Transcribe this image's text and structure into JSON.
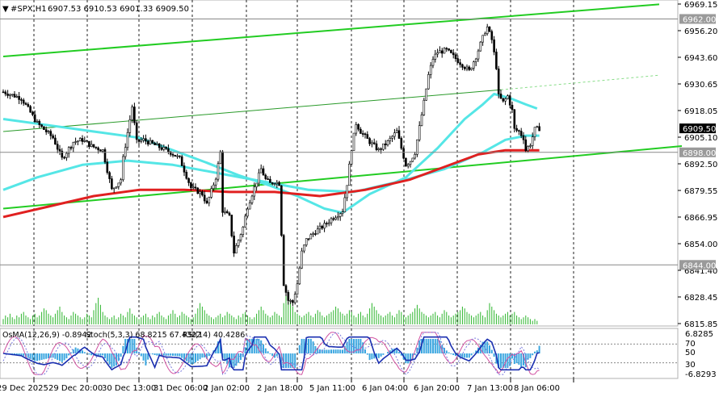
{
  "header": {
    "symbol": "#SPX,H1",
    "ohlc": "6907.53 6910.53 6901.33 6909.50"
  },
  "indicator": {
    "label_osma": "OsMA(12,26,9) -0.8942",
    "label_stoch": "Stoch(5,3,3) 68.8215 67.4322",
    "label_rsi": "RSI(14) 40.4286",
    "axis_labels": [
      "6.8285",
      "70",
      "50",
      "30",
      "-6.8293"
    ],
    "level_70_value": 70,
    "level_30_value": 30
  },
  "chart_data": {
    "type": "candlestick",
    "y_ticks": [
      "6969.15",
      "6956.20",
      "6943.60",
      "6930.65",
      "6918.05",
      "6905.10",
      "6892.50",
      "6879.55",
      "6866.95",
      "6854.00",
      "6841.40",
      "6828.45",
      "6815.85"
    ],
    "ylim": [
      6815.85,
      6969.15
    ],
    "x_ticks": [
      "29 Dec 2025",
      "29 Dec 20:00",
      "30 Dec 13:00",
      "31 Dec 06:00",
      "2 Jan 02:00",
      "2 Jan 18:00",
      "5 Jan 11:00",
      "6 Jan 04:00",
      "6 Jan 20:00",
      "7 Jan 13:00",
      "8 Jan 06:00"
    ],
    "price_labels": [
      {
        "text": "6962.00",
        "value": 6962.0,
        "style": "grey"
      },
      {
        "text": "6909.50",
        "value": 6909.5,
        "style": "current"
      },
      {
        "text": "6898.00",
        "value": 6898.0,
        "style": "grey"
      },
      {
        "text": "6844.00",
        "value": 6844.0,
        "style": "grey"
      }
    ],
    "close_path": [
      [
        0,
        6927
      ],
      [
        8,
        6924
      ],
      [
        15,
        6912
      ],
      [
        22,
        6905
      ],
      [
        26,
        6895
      ],
      [
        31,
        6903
      ],
      [
        35,
        6904
      ],
      [
        39,
        6901
      ],
      [
        44,
        6899
      ],
      [
        48,
        6880
      ],
      [
        52,
        6885
      ],
      [
        53,
        6895
      ],
      [
        57,
        6920
      ],
      [
        59,
        6903
      ],
      [
        62,
        6904
      ],
      [
        66,
        6902
      ],
      [
        70,
        6900
      ],
      [
        74,
        6898
      ],
      [
        78,
        6895
      ],
      [
        83,
        6881
      ],
      [
        88,
        6878
      ],
      [
        90,
        6873
      ],
      [
        94,
        6886
      ],
      [
        96,
        6898
      ],
      [
        97,
        6870
      ],
      [
        100,
        6867
      ],
      [
        102,
        6850
      ],
      [
        104,
        6856
      ],
      [
        106,
        6862
      ],
      [
        108,
        6872
      ],
      [
        110,
        6878
      ],
      [
        114,
        6890
      ],
      [
        116,
        6885
      ],
      [
        118,
        6883
      ],
      [
        120,
        6884
      ],
      [
        122,
        6883
      ],
      [
        124,
        6835
      ],
      [
        126,
        6827
      ],
      [
        128,
        6826
      ],
      [
        130,
        6835
      ],
      [
        132,
        6850
      ],
      [
        134,
        6856
      ],
      [
        138,
        6860
      ],
      [
        142,
        6863
      ],
      [
        145,
        6866
      ],
      [
        150,
        6870
      ],
      [
        152,
        6883
      ],
      [
        154,
        6900
      ],
      [
        156,
        6912
      ],
      [
        158,
        6908
      ],
      [
        162,
        6903
      ],
      [
        166,
        6899
      ],
      [
        170,
        6903
      ],
      [
        174,
        6908
      ],
      [
        176,
        6900
      ],
      [
        178,
        6892
      ],
      [
        180,
        6894
      ],
      [
        182,
        6898
      ],
      [
        184,
        6910
      ],
      [
        186,
        6922
      ],
      [
        188,
        6935
      ],
      [
        190,
        6943
      ],
      [
        192,
        6946
      ],
      [
        196,
        6947
      ],
      [
        200,
        6943
      ],
      [
        204,
        6939
      ],
      [
        206,
        6937
      ],
      [
        209,
        6944
      ],
      [
        211,
        6950
      ],
      [
        213,
        6956
      ],
      [
        214,
        6958
      ],
      [
        216,
        6952
      ],
      [
        218,
        6939
      ],
      [
        219,
        6925
      ],
      [
        221,
        6922
      ],
      [
        223,
        6925
      ],
      [
        225,
        6918
      ],
      [
        226,
        6909
      ],
      [
        228,
        6908
      ],
      [
        230,
        6905
      ],
      [
        231,
        6899
      ],
      [
        233,
        6902
      ],
      [
        235,
        6909
      ],
      [
        237,
        6909.5
      ]
    ],
    "series": [
      {
        "name": "",
        "color": "#55e6e6",
        "points": [
          [
            0,
            6914
          ],
          [
            20,
            6911
          ],
          [
            40,
            6908
          ],
          [
            60,
            6905
          ],
          [
            75,
            6899
          ],
          [
            90,
            6893
          ],
          [
            104,
            6887
          ],
          [
            118,
            6882
          ],
          [
            130,
            6877
          ],
          [
            142,
            6871
          ],
          [
            150,
            6869
          ],
          [
            162,
            6878
          ],
          [
            178,
            6886
          ],
          [
            192,
            6900
          ],
          [
            204,
            6914
          ],
          [
            212,
            6921
          ],
          [
            217,
            6926
          ],
          [
            224,
            6924
          ],
          [
            231,
            6921
          ],
          [
            236,
            6919
          ]
        ]
      },
      {
        "name": "",
        "color": "#55e6e6",
        "points": [
          [
            0,
            6880
          ],
          [
            15,
            6886
          ],
          [
            35,
            6892
          ],
          [
            55,
            6894
          ],
          [
            75,
            6892
          ],
          [
            95,
            6888
          ],
          [
            115,
            6884
          ],
          [
            135,
            6880
          ],
          [
            155,
            6879
          ],
          [
            175,
            6884
          ],
          [
            195,
            6890
          ],
          [
            212,
            6898
          ],
          [
            222,
            6904
          ],
          [
            231,
            6906
          ],
          [
            237,
            6906
          ]
        ]
      },
      {
        "name": "",
        "color": "#e02020",
        "points": [
          [
            0,
            6867
          ],
          [
            20,
            6872
          ],
          [
            40,
            6877
          ],
          [
            60,
            6880
          ],
          [
            80,
            6880
          ],
          [
            100,
            6879
          ],
          [
            120,
            6879
          ],
          [
            140,
            6877
          ],
          [
            160,
            6880
          ],
          [
            180,
            6885
          ],
          [
            195,
            6891
          ],
          [
            210,
            6897
          ],
          [
            222,
            6899
          ],
          [
            232,
            6899
          ],
          [
            237,
            6899
          ]
        ]
      }
    ],
    "trend_lines": [
      {
        "color": "#22cc22",
        "points": [
          [
            0,
            6944
          ],
          [
            290,
            6969
          ]
        ]
      },
      {
        "color": "#22cc22",
        "points": [
          [
            0,
            6871
          ],
          [
            300,
            6901
          ]
        ]
      },
      {
        "color": "#2a9a2a",
        "points": [
          [
            0,
            6908
          ],
          [
            220,
            6928
          ]
        ]
      },
      {
        "color": "#88dd88",
        "dashed": true,
        "points": [
          [
            220,
            6928
          ],
          [
            290,
            6935
          ]
        ]
      }
    ],
    "volume": [
      3,
      5,
      4,
      6,
      4,
      3,
      5,
      4,
      6,
      7,
      5,
      4,
      3,
      5,
      6,
      4,
      5,
      7,
      9,
      8,
      6,
      5,
      4,
      6,
      8,
      10,
      7,
      5,
      4,
      3,
      5,
      7,
      6,
      5,
      4,
      3,
      4,
      6,
      5,
      4,
      8,
      12,
      15,
      11,
      7,
      5,
      4,
      3,
      4,
      5,
      3,
      4,
      6,
      5,
      4,
      7,
      9,
      6,
      5,
      4,
      3,
      4,
      5,
      6,
      4,
      3,
      5,
      4,
      6,
      7,
      5,
      4,
      3,
      5,
      6,
      8,
      6,
      4,
      5,
      7,
      6,
      5,
      4,
      3,
      4,
      6,
      9,
      12,
      10,
      8,
      6,
      5,
      4,
      3,
      4,
      5,
      6,
      4,
      5,
      7,
      6,
      5,
      4,
      3,
      5,
      4,
      6,
      7,
      5,
      4,
      3,
      4,
      6,
      8,
      10,
      8,
      6,
      5,
      4,
      5,
      7,
      6,
      5,
      4,
      12,
      18,
      16,
      13,
      10,
      7,
      6,
      5,
      4,
      5,
      6,
      7,
      5,
      4,
      6,
      8,
      7,
      5,
      4,
      5,
      6,
      7,
      8,
      10,
      9,
      7,
      6,
      5,
      6,
      8,
      7,
      5,
      4,
      6,
      7,
      5,
      4,
      6,
      9,
      12,
      10,
      8,
      6,
      5,
      4,
      5,
      6,
      7,
      5,
      4,
      6,
      8,
      7,
      5,
      4,
      5,
      6,
      7,
      9,
      11,
      9,
      7,
      6,
      5,
      4,
      5,
      6,
      7,
      5,
      4,
      6,
      8,
      7,
      5,
      4,
      5,
      6,
      7,
      8,
      10,
      9,
      7,
      6,
      5,
      4,
      5,
      6,
      7,
      5,
      4,
      8,
      12,
      10,
      8,
      6,
      5,
      4,
      5,
      6,
      7,
      5,
      6,
      7,
      5,
      4,
      3,
      4,
      5,
      4,
      3,
      2,
      3,
      2
    ]
  }
}
